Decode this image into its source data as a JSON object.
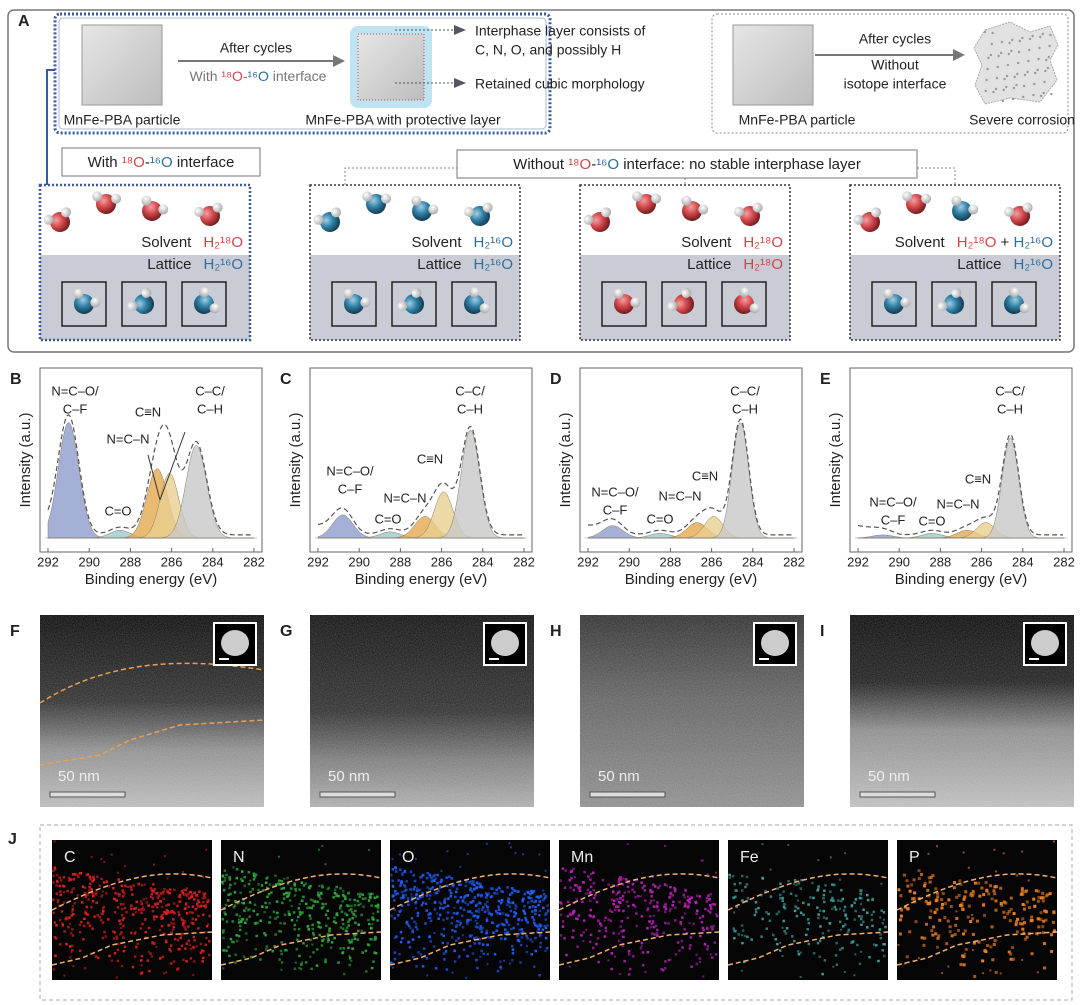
{
  "panel_a": {
    "label": "A",
    "with_process": {
      "start_label": "MnFe-PBA particle",
      "arrow_top": "After cycles",
      "arrow_bottom": [
        "With ",
        "¹⁸O",
        "-",
        "¹⁶O",
        " interface"
      ],
      "end_label": "MnFe-PBA with protective layer",
      "note_1": [
        "Interphase layer consists of",
        "C, N, O, and possibly H"
      ],
      "note_2": "Retained cubic morphology"
    },
    "without_process": {
      "start_label": "MnFe-PBA particle",
      "arrow_top": "After cycles",
      "arrow_bottom": [
        "Without",
        "isotope interface"
      ],
      "end_label": "Severe corrosion"
    },
    "with_heading": [
      "With ",
      "¹⁸O",
      "-",
      "¹⁶O",
      " interface"
    ],
    "without_heading": [
      "Without ",
      "¹⁸O",
      "-",
      "¹⁶O",
      " interface:  no stable interphase layer"
    ],
    "cases": [
      {
        "solvent_label": "Solvent",
        "solvent": [
          "H₂¹⁸O"
        ],
        "lattice_label": "Lattice",
        "lattice": "H₂¹⁶O"
      },
      {
        "solvent_label": "Solvent",
        "solvent": [
          "H₂¹⁶O"
        ],
        "lattice_label": "Lattice",
        "lattice": "H₂¹⁶O"
      },
      {
        "solvent_label": "Solvent",
        "solvent": [
          "H₂¹⁸O"
        ],
        "lattice_label": "Lattice",
        "lattice": "H₂¹⁸O"
      },
      {
        "solvent_label": "Solvent",
        "solvent": [
          "H₂¹⁸O",
          " + ",
          "H₂¹⁶O"
        ],
        "lattice_label": "Lattice",
        "lattice": "H₂¹⁶O"
      }
    ]
  },
  "xps_panels": [
    {
      "label": "B",
      "x_label": "Binding energy (eV)",
      "y_label": "Intensity (a.u.)",
      "x_ticks": [
        292,
        290,
        288,
        286,
        284,
        282
      ],
      "annotations": [
        [
          "N=C–O/",
          "C–F"
        ],
        [
          "C=O"
        ],
        [
          "N=C–N"
        ],
        [
          "C≡N"
        ],
        [
          "C–C/",
          "C–H"
        ]
      ]
    },
    {
      "label": "C",
      "x_label": "Binding energy (eV)",
      "y_label": "Intensity (a.u.)",
      "x_ticks": [
        292,
        290,
        288,
        286,
        284,
        282
      ],
      "annotations": [
        [
          "N=C–O/",
          "C–F"
        ],
        [
          "C=O"
        ],
        [
          "N=C–N"
        ],
        [
          "C≡N"
        ],
        [
          "C–C/",
          "C–H"
        ]
      ]
    },
    {
      "label": "D",
      "x_label": "Binding energy (eV)",
      "y_label": "Intensity (a.u.)",
      "x_ticks": [
        292,
        290,
        288,
        286,
        284,
        282
      ],
      "annotations": [
        [
          "N=C–O/",
          "C–F"
        ],
        [
          "C=O"
        ],
        [
          "N=C–N"
        ],
        [
          "C≡N"
        ],
        [
          "C–C/",
          "C–H"
        ]
      ]
    },
    {
      "label": "E",
      "x_label": "Binding energy (eV)",
      "y_label": "Intensity (a.u.)",
      "x_ticks": [
        292,
        290,
        288,
        286,
        284,
        282
      ],
      "annotations": [
        [
          "N=C–O/",
          "C–F"
        ],
        [
          "C=O"
        ],
        [
          "N=C–N"
        ],
        [
          "C≡N"
        ],
        [
          "C–C/",
          "C–H"
        ]
      ]
    }
  ],
  "tem_panels": [
    {
      "label": "F",
      "scale_bar": "50 nm"
    },
    {
      "label": "G",
      "scale_bar": "50 nm"
    },
    {
      "label": "H",
      "scale_bar": "50 nm"
    },
    {
      "label": "I",
      "scale_bar": "50 nm"
    }
  ],
  "eds": {
    "label": "J",
    "elements": [
      "C",
      "N",
      "O",
      "Mn",
      "Fe",
      "P"
    ]
  }
}
